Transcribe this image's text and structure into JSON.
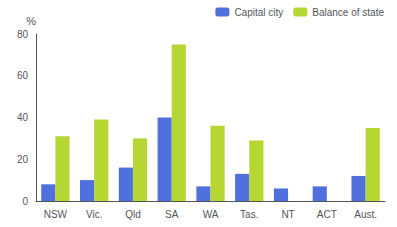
{
  "chart_data": {
    "type": "bar",
    "categories": [
      "NSW",
      "Vic.",
      "Qld",
      "SA",
      "WA",
      "Tas.",
      "NT",
      "ACT",
      "Aust."
    ],
    "series": [
      {
        "name": "Capital city",
        "values": [
          8,
          10,
          16,
          40,
          7,
          13,
          6,
          7,
          12
        ]
      },
      {
        "name": "Balance of state",
        "values": [
          31,
          39,
          30,
          75,
          36,
          29,
          0,
          0,
          35
        ]
      }
    ],
    "ylabel": "%",
    "ylim": [
      0,
      80
    ],
    "yticks": [
      0,
      20,
      40,
      60,
      80
    ],
    "grid": false,
    "legend": "upper right"
  }
}
